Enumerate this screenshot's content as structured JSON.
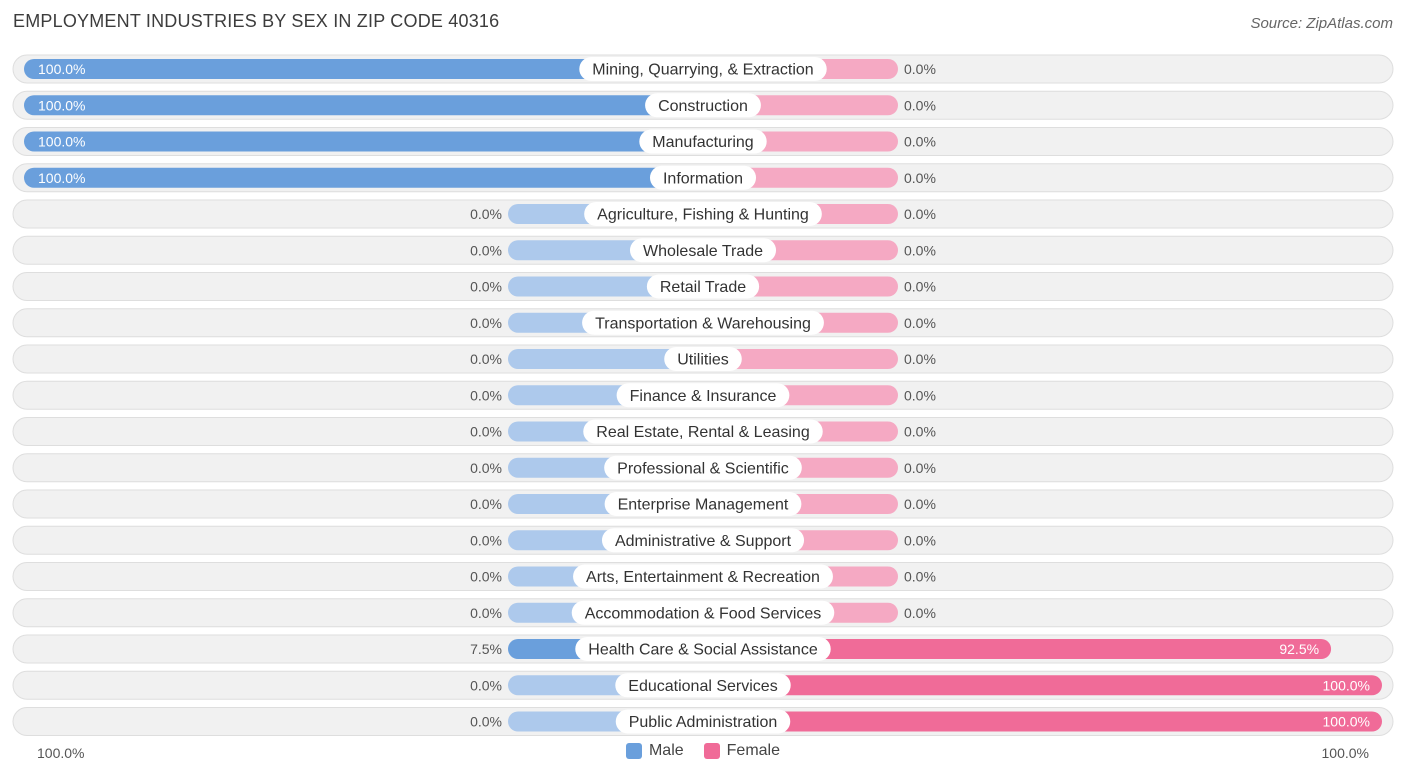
{
  "chart_data": {
    "type": "bar",
    "orientation": "horizontal-diverging",
    "title": "EMPLOYMENT INDUSTRIES BY SEX IN ZIP CODE 40316",
    "source": "Source: ZipAtlas.com",
    "categories": [
      "Mining, Quarrying, & Extraction",
      "Construction",
      "Manufacturing",
      "Information",
      "Agriculture, Fishing & Hunting",
      "Wholesale Trade",
      "Retail Trade",
      "Transportation & Warehousing",
      "Utilities",
      "Finance & Insurance",
      "Real Estate, Rental & Leasing",
      "Professional & Scientific",
      "Enterprise Management",
      "Administrative & Support",
      "Arts, Entertainment & Recreation",
      "Accommodation & Food Services",
      "Health Care & Social Assistance",
      "Educational Services",
      "Public Administration"
    ],
    "series": [
      {
        "name": "Male",
        "color": "#6a9fdc",
        "color_light": "#adc9ec",
        "values": [
          100.0,
          100.0,
          100.0,
          100.0,
          0.0,
          0.0,
          0.0,
          0.0,
          0.0,
          0.0,
          0.0,
          0.0,
          0.0,
          0.0,
          0.0,
          0.0,
          7.5,
          0.0,
          0.0
        ],
        "labels": [
          "100.0%",
          "100.0%",
          "100.0%",
          "100.0%",
          "0.0%",
          "0.0%",
          "0.0%",
          "0.0%",
          "0.0%",
          "0.0%",
          "0.0%",
          "0.0%",
          "0.0%",
          "0.0%",
          "0.0%",
          "0.0%",
          "7.5%",
          "0.0%",
          "0.0%"
        ]
      },
      {
        "name": "Female",
        "color": "#f06b98",
        "color_light": "#f5a9c3",
        "values": [
          0.0,
          0.0,
          0.0,
          0.0,
          0.0,
          0.0,
          0.0,
          0.0,
          0.0,
          0.0,
          0.0,
          0.0,
          0.0,
          0.0,
          0.0,
          0.0,
          92.5,
          100.0,
          100.0
        ],
        "labels": [
          "0.0%",
          "0.0%",
          "0.0%",
          "0.0%",
          "0.0%",
          "0.0%",
          "0.0%",
          "0.0%",
          "0.0%",
          "0.0%",
          "0.0%",
          "0.0%",
          "0.0%",
          "0.0%",
          "0.0%",
          "0.0%",
          "92.5%",
          "100.0%",
          "100.0%"
        ]
      }
    ],
    "xlim": [
      0,
      100
    ],
    "axis_labels": {
      "left": "100.0%",
      "right": "100.0%"
    },
    "legend": {
      "position": "bottom-center",
      "items": [
        "Male",
        "Female"
      ]
    }
  }
}
